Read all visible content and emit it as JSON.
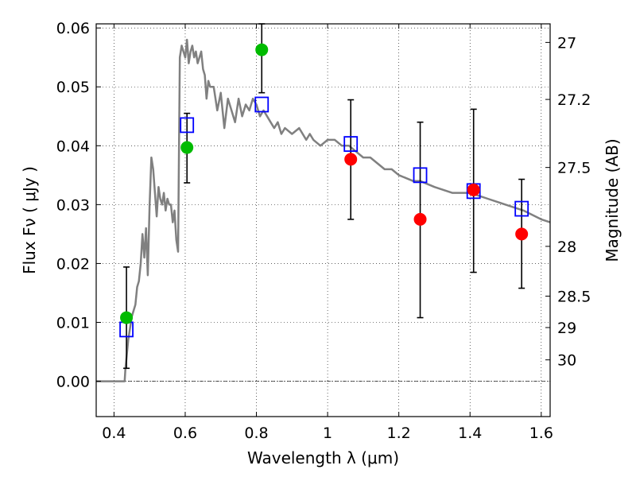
{
  "chart_data": {
    "type": "scatter",
    "xlabel": "Wavelength  λ (μm)",
    "ylabel": "Flux  Fν  ( μJy )",
    "ylabel_right": "Magnitude (AB)",
    "xlim": [
      0.35,
      1.625
    ],
    "ylim": [
      -0.006,
      0.0607
    ],
    "grid": true,
    "x_ticks": [
      {
        "value": 0.4,
        "label": "0.4"
      },
      {
        "value": 0.6,
        "label": "0.6"
      },
      {
        "value": 0.8,
        "label": "0.8"
      },
      {
        "value": 1.0,
        "label": "1"
      },
      {
        "value": 1.2,
        "label": "1.2"
      },
      {
        "value": 1.4,
        "label": "1.4"
      },
      {
        "value": 1.6,
        "label": "1.6"
      }
    ],
    "y_ticks": [
      {
        "value": 0.0,
        "label": "0.00"
      },
      {
        "value": 0.01,
        "label": "0.01"
      },
      {
        "value": 0.02,
        "label": "0.02"
      },
      {
        "value": 0.03,
        "label": "0.03"
      },
      {
        "value": 0.04,
        "label": "0.04"
      },
      {
        "value": 0.05,
        "label": "0.05"
      },
      {
        "value": 0.06,
        "label": "0.06"
      }
    ],
    "y_right_ticks": [
      {
        "value": 27,
        "label": "27"
      },
      {
        "value": 27.2,
        "label": "27.2"
      },
      {
        "value": 27.5,
        "label": "27.5"
      },
      {
        "value": 28,
        "label": "28"
      },
      {
        "value": 28.5,
        "label": "28.5"
      },
      {
        "value": 29,
        "label": "29"
      },
      {
        "value": 30,
        "label": "30"
      }
    ],
    "series": [
      {
        "kind": "line",
        "color": "#808080",
        "x": [
          0.35,
          0.43,
          0.432,
          0.44,
          0.45,
          0.46,
          0.465,
          0.47,
          0.475,
          0.48,
          0.485,
          0.49,
          0.495,
          0.5,
          0.505,
          0.51,
          0.515,
          0.52,
          0.525,
          0.53,
          0.535,
          0.54,
          0.545,
          0.55,
          0.555,
          0.56,
          0.565,
          0.57,
          0.575,
          0.58,
          0.585,
          0.59,
          0.6,
          0.605,
          0.61,
          0.615,
          0.62,
          0.625,
          0.63,
          0.635,
          0.64,
          0.645,
          0.65,
          0.655,
          0.66,
          0.665,
          0.67,
          0.68,
          0.69,
          0.7,
          0.71,
          0.72,
          0.73,
          0.74,
          0.75,
          0.76,
          0.77,
          0.78,
          0.79,
          0.8,
          0.81,
          0.82,
          0.83,
          0.84,
          0.85,
          0.86,
          0.87,
          0.88,
          0.9,
          0.92,
          0.94,
          0.95,
          0.96,
          0.98,
          1.0,
          1.02,
          1.04,
          1.06,
          1.08,
          1.1,
          1.12,
          1.14,
          1.16,
          1.18,
          1.2,
          1.24,
          1.26,
          1.3,
          1.35,
          1.4,
          1.45,
          1.5,
          1.55,
          1.6,
          1.625
        ],
        "y": [
          0.0,
          0.0,
          0.002,
          0.007,
          0.011,
          0.013,
          0.016,
          0.017,
          0.02,
          0.025,
          0.021,
          0.026,
          0.018,
          0.03,
          0.038,
          0.036,
          0.032,
          0.028,
          0.033,
          0.031,
          0.03,
          0.032,
          0.029,
          0.031,
          0.03,
          0.03,
          0.027,
          0.029,
          0.024,
          0.022,
          0.055,
          0.057,
          0.055,
          0.058,
          0.054,
          0.056,
          0.057,
          0.055,
          0.056,
          0.054,
          0.055,
          0.056,
          0.053,
          0.052,
          0.048,
          0.051,
          0.05,
          0.05,
          0.046,
          0.049,
          0.043,
          0.048,
          0.046,
          0.044,
          0.048,
          0.045,
          0.047,
          0.046,
          0.048,
          0.047,
          0.045,
          0.046,
          0.045,
          0.044,
          0.043,
          0.044,
          0.042,
          0.043,
          0.042,
          0.043,
          0.041,
          0.042,
          0.041,
          0.04,
          0.041,
          0.041,
          0.04,
          0.04,
          0.039,
          0.038,
          0.038,
          0.037,
          0.036,
          0.036,
          0.035,
          0.034,
          0.034,
          0.033,
          0.032,
          0.032,
          0.031,
          0.03,
          0.029,
          0.0275,
          0.027
        ]
      },
      {
        "kind": "markers",
        "marker": "square-open",
        "color": "#0000ff",
        "x": [
          0.435,
          0.605,
          0.815,
          1.065,
          1.26,
          1.41,
          1.545
        ],
        "y": [
          0.0088,
          0.0435,
          0.047,
          0.0403,
          0.035,
          0.0323,
          0.0293
        ]
      },
      {
        "kind": "markers",
        "marker": "circle",
        "color": "#00bb00",
        "x": [
          0.435,
          0.605,
          0.815
        ],
        "y": [
          0.0108,
          0.0397,
          0.0563
        ]
      },
      {
        "kind": "markers",
        "marker": "circle",
        "color": "#ff0000",
        "x": [
          1.065,
          1.26,
          1.41,
          1.545
        ],
        "y": [
          0.0377,
          0.0275,
          0.0325,
          0.025
        ]
      }
    ],
    "errorbars": [
      {
        "x": 0.435,
        "low": 0.0022,
        "high": 0.0194
      },
      {
        "x": 0.605,
        "low": 0.0337,
        "high": 0.0455
      },
      {
        "x": 0.815,
        "low": 0.049,
        "high": 0.0607
      },
      {
        "x": 1.065,
        "low": 0.0275,
        "high": 0.0478
      },
      {
        "x": 1.26,
        "low": 0.0108,
        "high": 0.044
      },
      {
        "x": 1.41,
        "low": 0.0185,
        "high": 0.0462
      },
      {
        "x": 1.545,
        "low": 0.0158,
        "high": 0.0343
      }
    ]
  }
}
